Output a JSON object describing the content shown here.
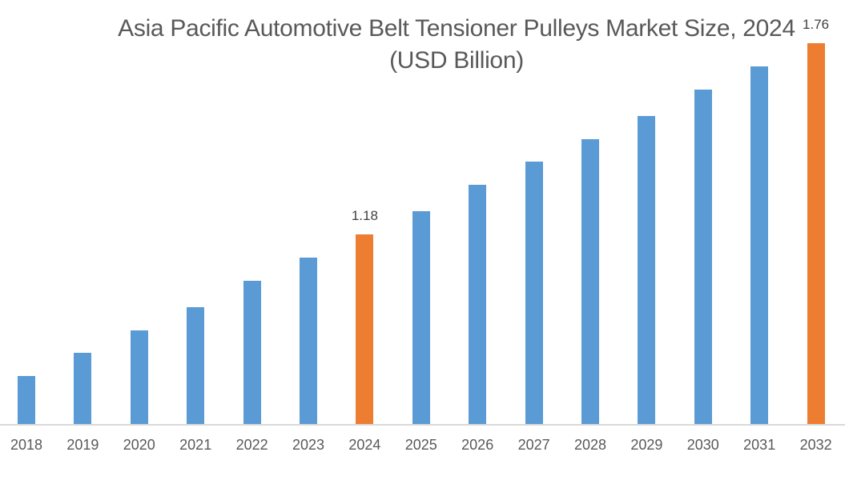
{
  "chart_data": {
    "type": "bar",
    "title": "Asia Pacific Automotive Belt Tensioner Pulleys Market Size, 2024",
    "subtitle": "(USD Billion)",
    "xlabel": "",
    "ylabel": "",
    "categories": [
      "2018",
      "2019",
      "2020",
      "2021",
      "2022",
      "2023",
      "2024",
      "2025",
      "2026",
      "2027",
      "2028",
      "2029",
      "2030",
      "2031",
      "2032"
    ],
    "values": [
      0.75,
      0.82,
      0.89,
      0.96,
      1.04,
      1.11,
      1.18,
      1.25,
      1.33,
      1.4,
      1.47,
      1.54,
      1.62,
      1.69,
      1.76
    ],
    "data_labels": [
      {
        "category": "2024",
        "text": "1.18"
      },
      {
        "category": "2032",
        "text": "1.76"
      }
    ],
    "highlighted": [
      "2024",
      "2032"
    ],
    "colors": {
      "default": "#5b9bd5",
      "highlight": "#ed7d31",
      "axis": "#d9d9d9",
      "text": "#595959"
    },
    "grid": false,
    "legend": "none",
    "y_axis_visible": false
  }
}
